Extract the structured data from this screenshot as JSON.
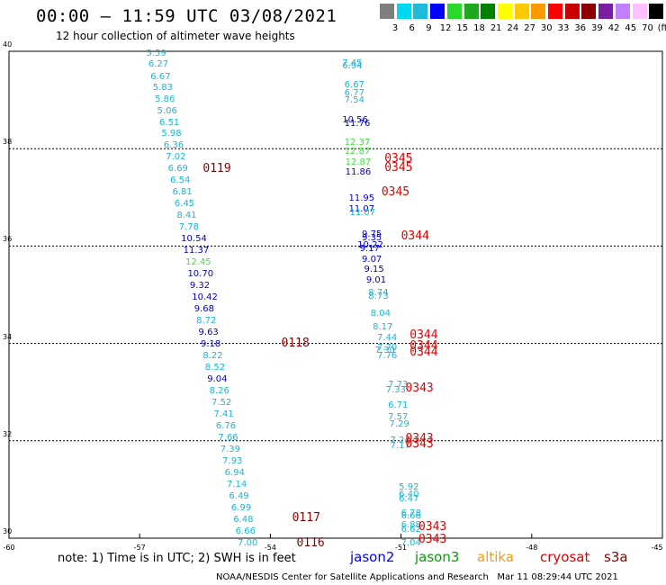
{
  "header": {
    "title": "00:00 – 11:59 UTC 03/08/2021",
    "subtitle": "12 hour collection of altimeter wave heights"
  },
  "color_scale": {
    "labels": [
      "3",
      "6",
      "9",
      "12",
      "15",
      "18",
      "21",
      "24",
      "27",
      "30",
      "33",
      "36",
      "39",
      "42",
      "45",
      "70",
      "(ft)"
    ],
    "colors": [
      "#7f7f7f",
      "#00d8f0",
      "#1ebad9",
      "#0000ff",
      "#2bd92b",
      "#1ea81e",
      "#008000",
      "#ffff00",
      "#ffc800",
      "#ff9900",
      "#ff0000",
      "#c80000",
      "#8b0000",
      "#7a1fa2",
      "#c080ff",
      "#ffc0ff",
      "#000000"
    ]
  },
  "axes": {
    "y_ticks": [
      "40",
      "38",
      "36",
      "34",
      "32",
      "30"
    ],
    "x_ticks": [
      "-60",
      "-57",
      "-54",
      "-51",
      "-48",
      "-45"
    ]
  },
  "sources": {
    "lat_range": [
      30,
      40
    ],
    "lon_range": [
      -60,
      -45
    ],
    "colors": {
      "lightblue": "#19b6d6",
      "blue": "#0000c8",
      "green": "#44e044",
      "darkred": "#8b0000",
      "red": "#e00000"
    },
    "wave_heights": [
      {
        "lon": -56.85,
        "lat": 39.95,
        "value": "5.59",
        "c": "lightblue"
      },
      {
        "lon": -56.8,
        "lat": 39.72,
        "value": "6.27",
        "c": "lightblue"
      },
      {
        "lon": -56.75,
        "lat": 39.47,
        "value": "6.67",
        "c": "lightblue"
      },
      {
        "lon": -56.7,
        "lat": 39.24,
        "value": "5.83",
        "c": "lightblue"
      },
      {
        "lon": -56.65,
        "lat": 39.0,
        "value": "5.86",
        "c": "lightblue"
      },
      {
        "lon": -56.6,
        "lat": 38.77,
        "value": "5.06",
        "c": "lightblue"
      },
      {
        "lon": -56.55,
        "lat": 38.53,
        "value": "6.51",
        "c": "lightblue"
      },
      {
        "lon": -56.5,
        "lat": 38.3,
        "value": "5.98",
        "c": "lightblue"
      },
      {
        "lon": -56.45,
        "lat": 38.06,
        "value": "6.36",
        "c": "lightblue"
      },
      {
        "lon": -56.4,
        "lat": 37.81,
        "value": "7.02",
        "c": "lightblue"
      },
      {
        "lon": -56.35,
        "lat": 37.57,
        "value": "6.69",
        "c": "lightblue"
      },
      {
        "lon": -56.3,
        "lat": 37.33,
        "value": "6.54",
        "c": "lightblue"
      },
      {
        "lon": -56.25,
        "lat": 37.09,
        "value": "6.81",
        "c": "lightblue"
      },
      {
        "lon": -56.2,
        "lat": 36.85,
        "value": "6.45",
        "c": "lightblue"
      },
      {
        "lon": -56.15,
        "lat": 36.61,
        "value": "8.41",
        "c": "lightblue"
      },
      {
        "lon": -56.1,
        "lat": 36.37,
        "value": "7.78",
        "c": "lightblue"
      },
      {
        "lon": -56.05,
        "lat": 36.13,
        "value": "10.54",
        "c": "blue"
      },
      {
        "lon": -56.0,
        "lat": 35.89,
        "value": "11.37",
        "c": "blue"
      },
      {
        "lon": -55.95,
        "lat": 35.65,
        "value": "12.45",
        "c": "green"
      },
      {
        "lon": -55.9,
        "lat": 35.41,
        "value": "10.70",
        "c": "blue"
      },
      {
        "lon": -55.85,
        "lat": 35.17,
        "value": "9.32",
        "c": "blue"
      },
      {
        "lon": -55.8,
        "lat": 34.93,
        "value": "10.42",
        "c": "blue"
      },
      {
        "lon": -55.75,
        "lat": 34.69,
        "value": "9.68",
        "c": "blue"
      },
      {
        "lon": -55.7,
        "lat": 34.45,
        "value": "8.72",
        "c": "lightblue"
      },
      {
        "lon": -55.65,
        "lat": 34.21,
        "value": "9.63",
        "c": "blue"
      },
      {
        "lon": -55.6,
        "lat": 33.97,
        "value": "9.18",
        "c": "blue"
      },
      {
        "lon": -55.55,
        "lat": 33.73,
        "value": "8.22",
        "c": "lightblue"
      },
      {
        "lon": -55.5,
        "lat": 33.49,
        "value": "8.52",
        "c": "lightblue"
      },
      {
        "lon": -55.45,
        "lat": 33.25,
        "value": "9.04",
        "c": "blue"
      },
      {
        "lon": -55.4,
        "lat": 33.01,
        "value": "8.26",
        "c": "lightblue"
      },
      {
        "lon": -55.35,
        "lat": 32.77,
        "value": "7.52",
        "c": "lightblue"
      },
      {
        "lon": -55.3,
        "lat": 32.53,
        "value": "7.41",
        "c": "lightblue"
      },
      {
        "lon": -55.25,
        "lat": 32.29,
        "value": "6.76",
        "c": "lightblue"
      },
      {
        "lon": -55.2,
        "lat": 32.05,
        "value": "7.66",
        "c": "lightblue"
      },
      {
        "lon": -55.15,
        "lat": 31.81,
        "value": "7.39",
        "c": "lightblue"
      },
      {
        "lon": -55.1,
        "lat": 31.57,
        "value": "7.93",
        "c": "lightblue"
      },
      {
        "lon": -55.05,
        "lat": 31.33,
        "value": "6.94",
        "c": "lightblue"
      },
      {
        "lon": -55.0,
        "lat": 31.09,
        "value": "7.14",
        "c": "lightblue"
      },
      {
        "lon": -54.95,
        "lat": 30.85,
        "value": "6.49",
        "c": "lightblue"
      },
      {
        "lon": -54.9,
        "lat": 30.61,
        "value": "6.99",
        "c": "lightblue"
      },
      {
        "lon": -54.85,
        "lat": 30.37,
        "value": "6.48",
        "c": "lightblue"
      },
      {
        "lon": -54.8,
        "lat": 30.13,
        "value": "6.66",
        "c": "lightblue"
      },
      {
        "lon": -54.75,
        "lat": 29.89,
        "value": "7.00",
        "c": "lightblue"
      },
      {
        "lon": -52.35,
        "lat": 39.74,
        "value": "7.45",
        "c": "lightblue"
      },
      {
        "lon": -52.35,
        "lat": 39.68,
        "value": "6.94",
        "c": "lightblue"
      },
      {
        "lon": -52.3,
        "lat": 39.3,
        "value": "6.67",
        "c": "lightblue"
      },
      {
        "lon": -52.3,
        "lat": 39.13,
        "value": "6.77",
        "c": "lightblue"
      },
      {
        "lon": -52.3,
        "lat": 38.98,
        "value": "7.54",
        "c": "lightblue"
      },
      {
        "lon": -52.35,
        "lat": 38.58,
        "value": "10.56",
        "c": "blue"
      },
      {
        "lon": -52.3,
        "lat": 38.5,
        "value": "11.76",
        "c": "blue"
      },
      {
        "lon": -52.3,
        "lat": 38.11,
        "value": "12.37",
        "c": "green"
      },
      {
        "lon": -52.3,
        "lat": 37.93,
        "value": "12.87",
        "c": "green"
      },
      {
        "lon": -52.28,
        "lat": 37.7,
        "value": "12.87",
        "c": "green"
      },
      {
        "lon": -52.28,
        "lat": 37.5,
        "value": "11.86",
        "c": "blue"
      },
      {
        "lon": -52.2,
        "lat": 36.96,
        "value": "11.95",
        "c": "blue"
      },
      {
        "lon": -52.2,
        "lat": 36.74,
        "value": "11.07",
        "c": "blue"
      },
      {
        "lon": -52.18,
        "lat": 36.68,
        "value": "11.07",
        "c": "lightblue"
      },
      {
        "lon": -51.9,
        "lat": 36.22,
        "value": "9.75",
        "c": "blue"
      },
      {
        "lon": -51.9,
        "lat": 36.16,
        "value": "9.35",
        "c": "blue"
      },
      {
        "lon": -52.0,
        "lat": 36.01,
        "value": "10.22",
        "c": "blue"
      },
      {
        "lon": -51.95,
        "lat": 35.93,
        "value": "9.17",
        "c": "blue"
      },
      {
        "lon": -51.9,
        "lat": 35.71,
        "value": "9.07",
        "c": "blue"
      },
      {
        "lon": -51.85,
        "lat": 35.5,
        "value": "9.15",
        "c": "blue"
      },
      {
        "lon": -51.8,
        "lat": 35.28,
        "value": "9.01",
        "c": "blue"
      },
      {
        "lon": -51.75,
        "lat": 35.02,
        "value": "8.74",
        "c": "lightblue"
      },
      {
        "lon": -51.75,
        "lat": 34.96,
        "value": "8.73",
        "c": "lightblue"
      },
      {
        "lon": -51.7,
        "lat": 34.6,
        "value": "8.04",
        "c": "lightblue"
      },
      {
        "lon": -51.65,
        "lat": 34.33,
        "value": "8.17",
        "c": "lightblue"
      },
      {
        "lon": -51.55,
        "lat": 34.1,
        "value": "7.44",
        "c": "lightblue"
      },
      {
        "lon": -51.55,
        "lat": 33.9,
        "value": "7.70",
        "c": "lightblue"
      },
      {
        "lon": -51.6,
        "lat": 33.84,
        "value": "7.30",
        "c": "lightblue"
      },
      {
        "lon": -51.55,
        "lat": 33.74,
        "value": "7.76",
        "c": "lightblue"
      },
      {
        "lon": -51.3,
        "lat": 33.14,
        "value": "7.73",
        "c": "lightblue"
      },
      {
        "lon": -51.35,
        "lat": 33.03,
        "value": "7.33",
        "c": "lightblue"
      },
      {
        "lon": -51.3,
        "lat": 32.72,
        "value": "6.71",
        "c": "lightblue"
      },
      {
        "lon": -51.3,
        "lat": 32.48,
        "value": "7.57",
        "c": "lightblue"
      },
      {
        "lon": -51.27,
        "lat": 32.33,
        "value": "7.29",
        "c": "lightblue"
      },
      {
        "lon": -51.25,
        "lat": 31.99,
        "value": "7.24",
        "c": "lightblue"
      },
      {
        "lon": -51.25,
        "lat": 31.88,
        "value": "7.17",
        "c": "lightblue"
      },
      {
        "lon": -51.05,
        "lat": 31.03,
        "value": "5.92",
        "c": "lightblue"
      },
      {
        "lon": -51.05,
        "lat": 30.88,
        "value": "6.40",
        "c": "lightblue"
      },
      {
        "lon": -51.05,
        "lat": 30.79,
        "value": "6.47",
        "c": "lightblue"
      },
      {
        "lon": -51.0,
        "lat": 30.5,
        "value": "6.78",
        "c": "lightblue"
      },
      {
        "lon": -51.0,
        "lat": 30.44,
        "value": "6.66",
        "c": "lightblue"
      },
      {
        "lon": -51.0,
        "lat": 30.25,
        "value": "6.88",
        "c": "lightblue"
      },
      {
        "lon": -51.0,
        "lat": 30.17,
        "value": "6.62",
        "c": "lightblue"
      },
      {
        "lon": -51.0,
        "lat": 29.89,
        "value": "7.04",
        "c": "lightblue"
      }
    ],
    "pass_times": [
      {
        "lon": -55.55,
        "lat": 37.57,
        "value": "0119",
        "c": "darkred"
      },
      {
        "lon": -53.75,
        "lat": 33.99,
        "value": "0118",
        "c": "darkred"
      },
      {
        "lon": -53.5,
        "lat": 30.4,
        "value": "0117",
        "c": "darkred"
      },
      {
        "lon": -53.4,
        "lat": 29.89,
        "value": "0116",
        "c": "darkred"
      },
      {
        "lon": -51.38,
        "lat": 37.79,
        "value": "0345",
        "c": "red"
      },
      {
        "lon": -51.38,
        "lat": 37.6,
        "value": "0345",
        "c": "red"
      },
      {
        "lon": -51.45,
        "lat": 37.1,
        "value": "0345",
        "c": "red"
      },
      {
        "lon": -51.0,
        "lat": 36.2,
        "value": "0344",
        "c": "red"
      },
      {
        "lon": -50.8,
        "lat": 34.16,
        "value": "0344",
        "c": "red"
      },
      {
        "lon": -50.8,
        "lat": 33.93,
        "value": "0344",
        "c": "red"
      },
      {
        "lon": -50.8,
        "lat": 33.8,
        "value": "0344",
        "c": "red"
      },
      {
        "lon": -50.9,
        "lat": 33.06,
        "value": "0343",
        "c": "red"
      },
      {
        "lon": -50.9,
        "lat": 32.03,
        "value": "0343",
        "c": "red"
      },
      {
        "lon": -50.9,
        "lat": 31.93,
        "value": "0343",
        "c": "red"
      },
      {
        "lon": -50.6,
        "lat": 30.22,
        "value": "0343",
        "c": "red"
      },
      {
        "lon": -50.6,
        "lat": 29.97,
        "value": "0343",
        "c": "red"
      }
    ]
  },
  "note": "note: 1) Time is in UTC; 2) SWH is in feet",
  "legend": [
    {
      "label": "jason2",
      "color": "#0000ff"
    },
    {
      "label": "jason3",
      "color": "#0a9a0a"
    },
    {
      "label": "altika",
      "color": "#ff9900"
    },
    {
      "label": "cryosat",
      "color": "#e00000"
    },
    {
      "label": "s3a",
      "color": "#8b0000"
    }
  ],
  "footer": "NOAA/NESDIS Center for Satellite Applications and Research   Mar 11 08:29:44 UTC 2021"
}
